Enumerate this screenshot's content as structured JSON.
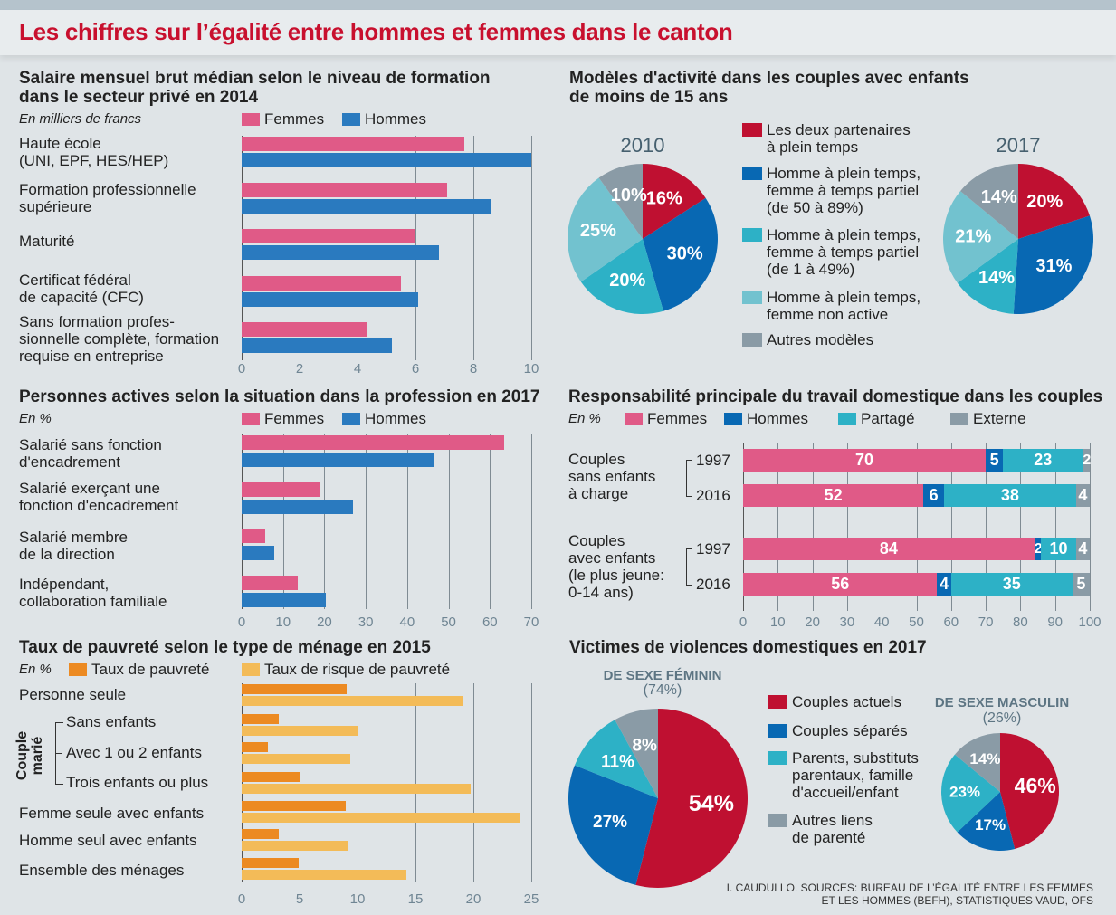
{
  "header": {
    "title": "Les chiffres sur l’égalité entre hommes et femmes dans le canton"
  },
  "colors": {
    "title_red": "#c8102e",
    "femmes": "#e05a87",
    "hommes": "#2a7abf",
    "pauvrete": "#ec8a22",
    "risque": "#f3bb58",
    "red": "#bf1031",
    "dark_blue": "#0868b3",
    "teal": "#2db1c6",
    "light_teal": "#72c2cf",
    "grey": "#8a9ba6"
  },
  "chart_data": [
    {
      "type": "bar",
      "orientation": "horizontal",
      "title": "Salaire mensuel brut médian selon le niveau de formation\ndans le secteur privé en 2014",
      "subtitle": "En milliers de francs",
      "legend": [
        "Femmes",
        "Hommes"
      ],
      "categories": [
        "Haute école\n(UNI, EPF, HES/HEP)",
        "Formation professionnelle\nsupérieure",
        "Maturité",
        "Certificat fédéral\nde capacité (CFC)",
        "Sans formation profes-\nsionnelle complète, formation\nrequise en entreprise"
      ],
      "series": [
        {
          "name": "Femmes",
          "color": "#e05a87",
          "values": [
            7.7,
            7.1,
            6.0,
            5.5,
            4.3
          ]
        },
        {
          "name": "Hommes",
          "color": "#2a7abf",
          "values": [
            10.0,
            8.6,
            6.8,
            6.1,
            5.2
          ]
        }
      ],
      "xlim": [
        0,
        10
      ],
      "ticks": [
        "0",
        "2",
        "4",
        "6",
        "8",
        "10"
      ],
      "grid": true
    },
    {
      "type": "bar",
      "orientation": "horizontal",
      "title": "Personnes actives selon la situation dans la profession en 2017",
      "subtitle": "En %",
      "legend": [
        "Femmes",
        "Hommes"
      ],
      "categories": [
        "Salarié sans fonction\nd'encadrement",
        "Salarié exerçant une\nfonction d'encadrement",
        "Salarié membre\nde la direction",
        "Indépendant,\ncollaboration familiale"
      ],
      "series": [
        {
          "name": "Femmes",
          "color": "#e05a87",
          "values": [
            63.4,
            18.8,
            5.7,
            13.6
          ]
        },
        {
          "name": "Hommes",
          "color": "#2a7abf",
          "values": [
            46.4,
            26.9,
            7.9,
            20.3
          ]
        }
      ],
      "xlim": [
        0,
        70
      ],
      "ticks": [
        "0",
        "10",
        "20",
        "30",
        "40",
        "50",
        "60",
        "70"
      ],
      "grid": true
    },
    {
      "type": "bar",
      "orientation": "horizontal",
      "title": "Taux de pauvreté selon le type de ménage en 2015",
      "subtitle": "En %",
      "legend": [
        "Taux de pauvreté",
        "Taux de risque de pauvreté"
      ],
      "group_label": "Couple\nmarié",
      "categories": [
        "Personne seule",
        "Sans enfants",
        "Avec 1 ou 2 enfants",
        "Trois enfants ou plus",
        "Femme seule avec enfants",
        "Homme seul avec enfants",
        "Ensemble des ménages"
      ],
      "series": [
        {
          "name": "Taux de pauvreté",
          "color": "#ec8a22",
          "values": [
            9.1,
            3.2,
            2.3,
            5.1,
            9.0,
            3.2,
            4.9
          ]
        },
        {
          "name": "Taux de risque de pauvreté",
          "color": "#f3bb58",
          "values": [
            19.1,
            10.1,
            9.4,
            19.8,
            24.1,
            9.2,
            14.2
          ]
        }
      ],
      "xlim": [
        0,
        25
      ],
      "ticks": [
        "0",
        "5",
        "10",
        "15",
        "20",
        "25"
      ],
      "grid": true
    },
    {
      "type": "pie",
      "title": "Modèles d'activité dans les couples avec enfants\nde moins de 15 ans",
      "legend": [
        "Les deux partenaires\nà plein temps",
        "Homme à plein temps,\nfemme à temps partiel\n(de 50 à 89%)",
        "Homme à plein temps,\nfemme à temps partiel\n(de 1 à 49%)",
        "Homme à plein temps,\nfemme non active",
        "Autres modèles"
      ],
      "slice_colors": [
        "#bf1031",
        "#0868b3",
        "#2db1c6",
        "#72c2cf",
        "#8a9ba6"
      ],
      "pies": [
        {
          "label": "2010",
          "values": [
            16,
            30,
            20,
            25,
            10
          ],
          "value_labels": [
            "16%",
            "30%",
            "20%",
            "25%",
            "10%"
          ]
        },
        {
          "label": "2017",
          "values": [
            20,
            31,
            14,
            21,
            14
          ],
          "value_labels": [
            "20%",
            "31%",
            "14%",
            "21%",
            "14%"
          ]
        }
      ]
    },
    {
      "type": "bar",
      "orientation": "horizontal",
      "stacked": true,
      "title": "Responsabilité principale du travail domestique dans les couples",
      "subtitle": "En %",
      "legend": [
        "Femmes",
        "Hommes",
        "Partagé",
        "Externe"
      ],
      "series_colors": [
        "#e05a87",
        "#0868b3",
        "#2db1c6",
        "#8a9ba6"
      ],
      "groups": [
        {
          "label": "Couples\nsans enfants\nà charge",
          "rows": [
            {
              "year": "1997",
              "values": [
                70,
                5,
                23,
                2
              ]
            },
            {
              "year": "2016",
              "values": [
                52,
                6,
                38,
                4
              ]
            }
          ]
        },
        {
          "label": "Couples\navec enfants\n(le plus jeune:\n0-14 ans)",
          "rows": [
            {
              "year": "1997",
              "values": [
                84,
                2,
                10,
                4
              ]
            },
            {
              "year": "2016",
              "values": [
                56,
                4,
                35,
                5
              ]
            }
          ]
        }
      ],
      "xlim": [
        0,
        100
      ],
      "ticks": [
        "0",
        "10",
        "20",
        "30",
        "40",
        "50",
        "60",
        "70",
        "80",
        "90",
        "100"
      ],
      "grid": true
    },
    {
      "type": "pie",
      "title": "Victimes de violences domestiques en 2017",
      "legend": [
        "Couples actuels",
        "Couples séparés",
        "Parents, substituts\nparentaux, famille\nd'accueil/enfant",
        "Autres liens\nde parenté"
      ],
      "slice_colors": [
        "#bf1031",
        "#0868b3",
        "#2db1c6",
        "#8a9ba6"
      ],
      "pies": [
        {
          "label": "DE SEXE FÉMININ",
          "share": "(74%)",
          "values": [
            54,
            27,
            11,
            8
          ],
          "value_labels": [
            "54%",
            "27%",
            "11%",
            "8%"
          ]
        },
        {
          "label": "DE SEXE MASCULIN",
          "share": "(26%)",
          "values": [
            46,
            17,
            23,
            14
          ],
          "value_labels": [
            "46%",
            "17%",
            "23%",
            "14%"
          ]
        }
      ]
    }
  ],
  "credit": "I. CAUDULLO. SOURCES: BUREAU DE L’ÉGALITÉ ENTRE LES FEMMES\nET LES HOMMES (BEFH), STATISTIQUES VAUD, OFS"
}
